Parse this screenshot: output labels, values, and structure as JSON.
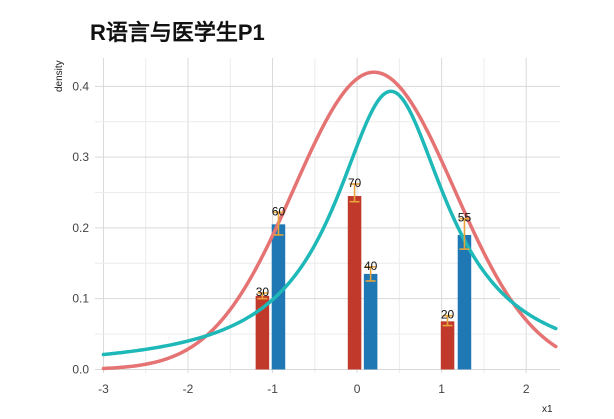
{
  "chart_data": {
    "type": "bar",
    "title": "R语言与医学生P1",
    "xlabel": "x1",
    "ylabel": "density",
    "xlim": [
      -3.1,
      2.4
    ],
    "ylim": [
      -0.005,
      0.44
    ],
    "x_ticks": [
      "-3",
      "-2",
      "-1",
      "0",
      "1",
      "2"
    ],
    "x_tick_values": [
      -3,
      -2,
      -1,
      0,
      1,
      2
    ],
    "y_ticks": [
      "0.0",
      "0.1",
      "0.2",
      "0.3",
      "0.4"
    ],
    "y_tick_values": [
      0,
      0.1,
      0.2,
      0.3,
      0.4
    ],
    "grid": true,
    "bars": [
      {
        "x": -1.12,
        "value": 0.104,
        "label": "30",
        "error": [
          0.1,
          0.108
        ],
        "color": "#c0392b"
      },
      {
        "x": -0.93,
        "value": 0.205,
        "label": "60",
        "error": [
          0.19,
          0.222
        ],
        "color": "#1f77b4"
      },
      {
        "x": -0.03,
        "value": 0.245,
        "label": "70",
        "error": [
          0.237,
          0.262
        ],
        "color": "#c0392b"
      },
      {
        "x": 0.16,
        "value": 0.135,
        "label": "40",
        "error": [
          0.125,
          0.145
        ],
        "color": "#1f77b4"
      },
      {
        "x": 1.07,
        "value": 0.068,
        "label": "20",
        "error": [
          0.062,
          0.076
        ],
        "color": "#c0392b"
      },
      {
        "x": 1.27,
        "value": 0.19,
        "label": "55",
        "error": [
          0.17,
          0.213
        ],
        "color": "#1f77b4"
      }
    ],
    "bar_width": 0.16,
    "error_color": "#e8a33a",
    "curves": [
      {
        "color": "#e57373",
        "mean": 0.2,
        "sd": 0.95,
        "distribution": "normal"
      },
      {
        "color": "#1fb8b8",
        "mean": 0.4,
        "scale": 0.81,
        "distribution": "cauchy"
      }
    ]
  }
}
